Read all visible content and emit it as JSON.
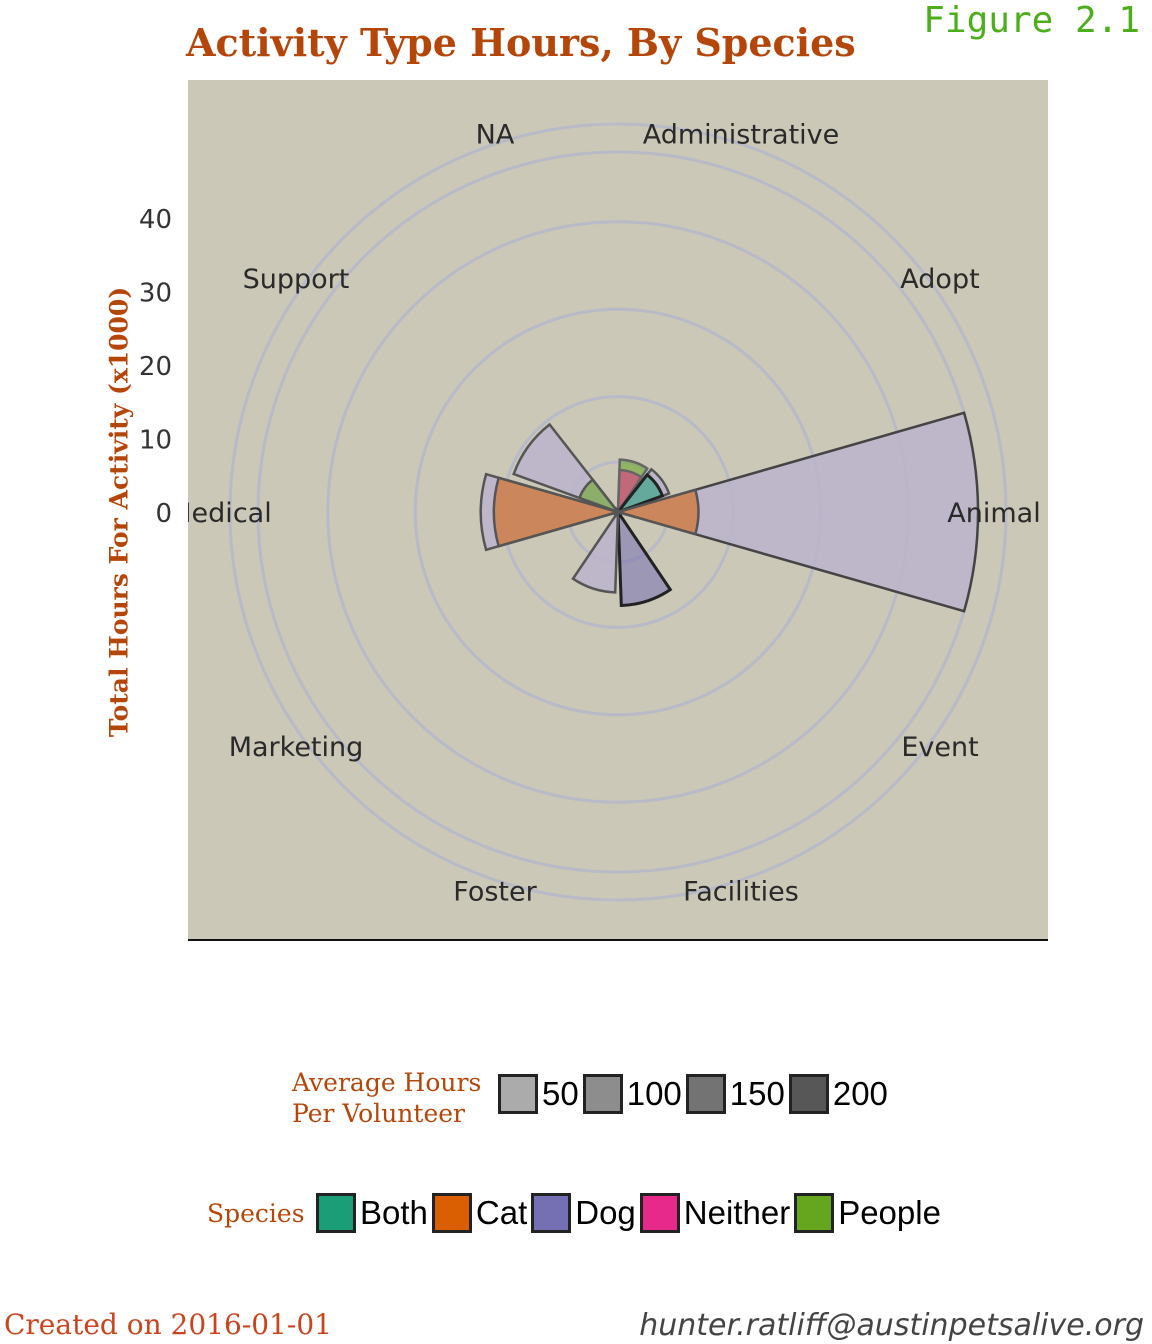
{
  "header": {
    "title": "Activity Type Hours, By Species",
    "figure_label": "Figure 2.1"
  },
  "colors": {
    "panel_bg": "#cbc8b7",
    "grid": "#b3b6cc",
    "title": "#b5460a",
    "Both": "#1b9e77",
    "Cat": "#d95f02",
    "Dog": "#7570b3",
    "Neither": "#e7298a",
    "People": "#66a61e",
    "Gray": "#bbb4cc"
  },
  "chart_data": {
    "type": "polar_bar",
    "title": "Activity Type Hours, By Species",
    "ylabel": "Total Hours For Activity (x1000)",
    "radial_ticks": [
      0,
      10,
      20,
      30,
      40
    ],
    "rlim": [
      0,
      45
    ],
    "grid": true,
    "categories": [
      "Administrative",
      "Adopt",
      "Animal Care",
      "Event",
      "Facilities",
      "Foster",
      "Marketing",
      "Medical",
      "Support",
      "NA"
    ],
    "category_label_text": [
      "Administrative",
      "Adopt",
      "Animal Ca",
      "Event",
      "Facilities",
      "Foster",
      "Marketing",
      "Medical",
      "Support",
      "NA"
    ],
    "bars": [
      {
        "category": "Administrative",
        "species": "People",
        "value": 2.8,
        "avg_hours": 60
      },
      {
        "category": "Administrative",
        "species": "Neither",
        "value": 1.6,
        "avg_hours": 60
      },
      {
        "category": "Adopt",
        "species": "Gray",
        "value": 3.0,
        "avg_hours": 110
      },
      {
        "category": "Adopt",
        "species": "Both",
        "value": 2.2,
        "avg_hours": 180
      },
      {
        "category": "Animal Care",
        "species": "Gray",
        "value": 40.0,
        "avg_hours": 130
      },
      {
        "category": "Animal Care",
        "species": "Cat",
        "value": 6.0,
        "avg_hours": 80
      },
      {
        "category": "Facilities",
        "species": "Dog",
        "value": 7.5,
        "avg_hours": 200
      },
      {
        "category": "Foster",
        "species": "Gray",
        "value": 6.0,
        "avg_hours": 110
      },
      {
        "category": "Medical",
        "species": "Gray",
        "value": 12.5,
        "avg_hours": 110
      },
      {
        "category": "Medical",
        "species": "Cat",
        "value": 11.0,
        "avg_hours": 80
      },
      {
        "category": "Support",
        "species": "Gray",
        "value": 9.5,
        "avg_hours": 90
      },
      {
        "category": "Support",
        "species": "People",
        "value": 1.5,
        "avg_hours": 90
      }
    ]
  },
  "legend": {
    "size_title": "Average Hours\nPer Volunteer",
    "size_items": [
      {
        "label": "50",
        "color": "#ababab"
      },
      {
        "label": "100",
        "color": "#8d8d8d"
      },
      {
        "label": "150",
        "color": "#737373"
      },
      {
        "label": "200",
        "color": "#575757"
      }
    ],
    "species_title": "Species",
    "species_items": [
      {
        "label": "Both",
        "color": "#1b9e77"
      },
      {
        "label": "Cat",
        "color": "#d95f02"
      },
      {
        "label": "Dog",
        "color": "#7570b3"
      },
      {
        "label": "Neither",
        "color": "#e7298a"
      },
      {
        "label": "People",
        "color": "#66a61e"
      }
    ]
  },
  "footer": {
    "created": "Created on 2016-01-01",
    "email": "hunter.ratliff@austinpetsalive.org"
  }
}
